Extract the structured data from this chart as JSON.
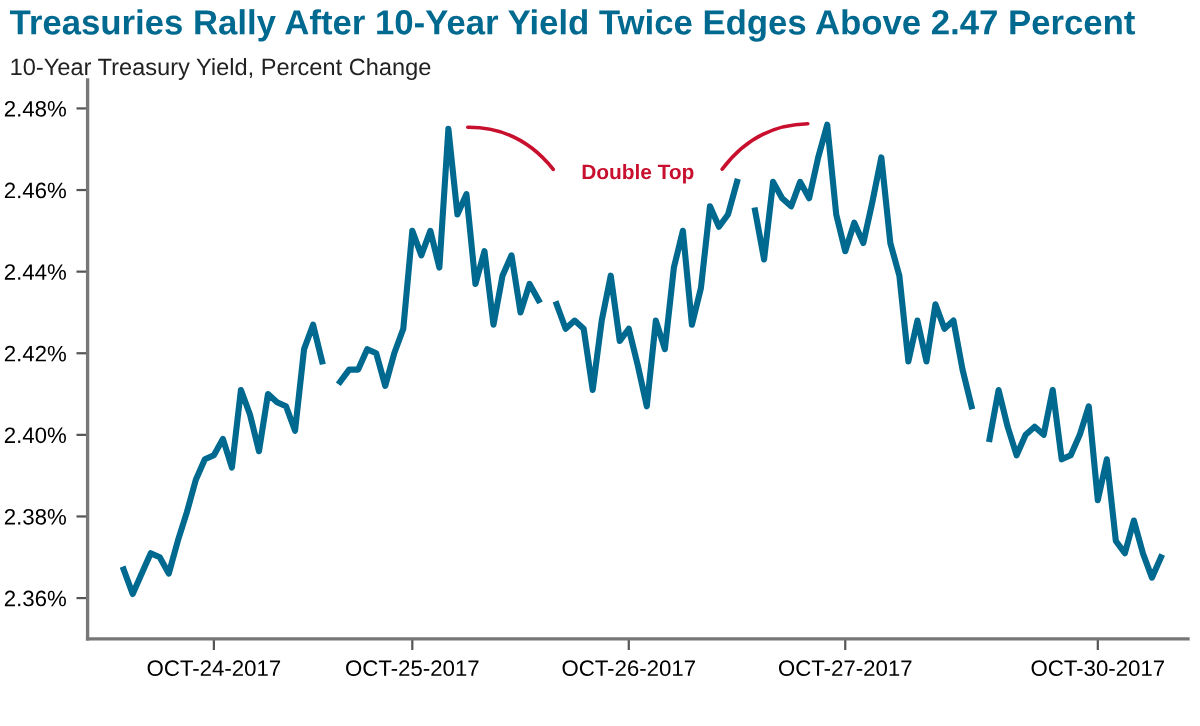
{
  "chart_data": {
    "type": "line",
    "title": "Treasuries Rally After 10-Year Yield Twice Edges Above 2.47 Percent",
    "subtitle": "10-Year Treasury Yield, Percent Change",
    "annotations": [
      "Double Top"
    ],
    "categories": [
      null,
      null,
      null,
      null,
      null,
      null,
      null,
      null,
      null,
      null,
      "OCT-24-2017",
      null,
      null,
      null,
      null,
      null,
      null,
      null,
      null,
      null,
      null,
      null,
      null,
      null,
      null,
      null,
      null,
      null,
      null,
      null,
      null,
      null,
      "OCT-25-2017",
      null,
      null,
      null,
      null,
      null,
      null,
      null,
      null,
      null,
      null,
      null,
      null,
      null,
      null,
      null,
      null,
      null,
      null,
      null,
      null,
      null,
      null,
      null,
      "OCT-26-2017",
      null,
      null,
      null,
      null,
      null,
      null,
      null,
      null,
      null,
      null,
      null,
      null,
      null,
      null,
      null,
      null,
      null,
      null,
      null,
      null,
      null,
      null,
      null,
      "OCT-27-2017",
      null,
      null,
      null,
      null,
      null,
      null,
      null,
      null,
      null,
      null,
      null,
      null,
      null,
      null,
      null,
      null,
      null,
      null,
      null,
      null,
      null,
      null,
      null,
      null,
      null,
      null,
      null,
      "OCT-30-2017",
      null,
      null,
      null,
      null,
      null,
      null,
      null
    ],
    "series": [
      {
        "color": "#00698f",
        "values": [
          2.367,
          2.361,
          2.366,
          2.371,
          2.37,
          2.366,
          2.374,
          2.381,
          2.389,
          2.394,
          2.395,
          2.399,
          2.392,
          2.411,
          2.405,
          2.396,
          2.41,
          2.408,
          2.407,
          2.401,
          2.421,
          2.427,
          2.418,
          null,
          2.413,
          2.416,
          2.416,
          2.421,
          2.42,
          2.412,
          2.42,
          2.426,
          2.45,
          2.444,
          2.45,
          2.441,
          2.475,
          2.454,
          2.459,
          2.437,
          2.445,
          2.427,
          2.439,
          2.444,
          2.43,
          2.437,
          2.433,
          null,
          2.432,
          2.426,
          2.428,
          2.426,
          2.411,
          2.428,
          2.439,
          2.423,
          2.426,
          2.417,
          2.407,
          2.428,
          2.421,
          2.441,
          2.45,
          2.427,
          2.436,
          2.456,
          2.451,
          2.454,
          2.462,
          null,
          2.455,
          2.443,
          2.462,
          2.458,
          2.456,
          2.462,
          2.458,
          2.468,
          2.476,
          2.454,
          2.445,
          2.452,
          2.447,
          2.457,
          2.468,
          2.447,
          2.439,
          2.418,
          2.428,
          2.418,
          2.432,
          2.426,
          2.428,
          2.416,
          2.407,
          null,
          2.399,
          2.411,
          2.402,
          2.395,
          2.4,
          2.402,
          2.4,
          2.411,
          2.394,
          2.395,
          2.4,
          2.407,
          2.384,
          2.394,
          2.374,
          2.371,
          2.379,
          2.371,
          2.365,
          2.37
        ]
      }
    ],
    "ylim": [
      2.35,
      2.487
    ],
    "yticks": [
      {
        "value": 2.36,
        "label": "2.36%"
      },
      {
        "value": 2.38,
        "label": "2.38%"
      },
      {
        "value": 2.4,
        "label": "2.40%"
      },
      {
        "value": 2.42,
        "label": "2.42%"
      },
      {
        "value": 2.44,
        "label": "2.44%"
      },
      {
        "value": 2.46,
        "label": "2.46%"
      },
      {
        "value": 2.48,
        "label": "2.48%"
      }
    ],
    "grid": false,
    "legend": false,
    "marker": "none",
    "line_style": "solid"
  }
}
